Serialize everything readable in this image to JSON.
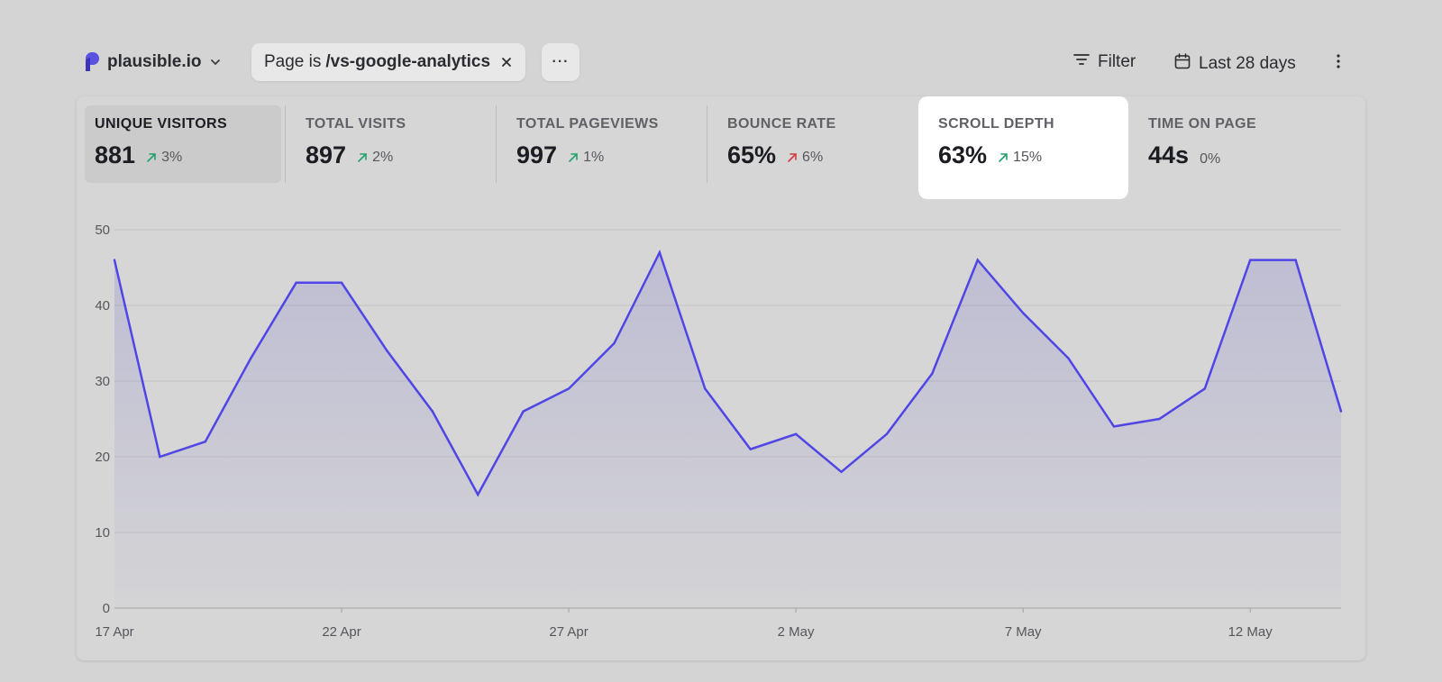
{
  "header": {
    "site_name": "plausible.io",
    "filter_prefix": "Page is",
    "filter_value": "/vs-google-analytics",
    "more_label": "···",
    "filter_label": "Filter",
    "date_range_label": "Last 28 days"
  },
  "metrics": [
    {
      "label": "UNIQUE VISITORS",
      "value": "881",
      "change": "3%",
      "direction": "up",
      "color": "#22a06b",
      "selected": true
    },
    {
      "label": "TOTAL VISITS",
      "value": "897",
      "change": "2%",
      "direction": "up",
      "color": "#22a06b"
    },
    {
      "label": "TOTAL PAGEVIEWS",
      "value": "997",
      "change": "1%",
      "direction": "up",
      "color": "#22a06b"
    },
    {
      "label": "BOUNCE RATE",
      "value": "65%",
      "change": "6%",
      "direction": "up",
      "color": "#d13b3b"
    },
    {
      "label": "SCROLL DEPTH",
      "value": "63%",
      "change": "15%",
      "direction": "up",
      "color": "#22a06b",
      "highlighted": true
    },
    {
      "label": "TIME ON PAGE",
      "value": "44s",
      "change": "0%",
      "direction": "none"
    }
  ],
  "chart_data": {
    "type": "area",
    "ylim": [
      0,
      50
    ],
    "yticks": [
      "0",
      "10",
      "20",
      "30",
      "40",
      "50"
    ],
    "xtick_labels": [
      "17 Apr",
      "22 Apr",
      "27 Apr",
      "2 May",
      "7 May",
      "12 May"
    ],
    "series": [
      {
        "values": [
          46,
          20,
          22,
          33,
          43,
          43,
          34,
          26,
          15,
          26,
          29,
          35,
          47,
          29,
          21,
          23,
          18,
          23,
          31,
          46,
          39,
          33,
          24,
          25,
          29,
          46,
          46,
          26
        ]
      }
    ],
    "line_color": "#4f46e5",
    "fill_color": "#6a64c8"
  }
}
